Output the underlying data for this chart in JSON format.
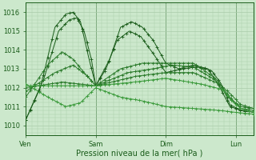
{
  "background_color": "#cce8cc",
  "grid_color": "#aaccaa",
  "line_colors": [
    "#1a5c1a",
    "#1a5c1a",
    "#2a7a2a",
    "#2a7a2a",
    "#2a7a2a",
    "#3a9a3a",
    "#3a9a3a"
  ],
  "marker": "+",
  "xlabel": "Pression niveau de la mer( hPa )",
  "xlabel_fontsize": 7,
  "tick_fontsize": 6,
  "ylim": [
    1009.5,
    1016.5
  ],
  "yticks": [
    1010,
    1011,
    1012,
    1013,
    1014,
    1015,
    1016
  ],
  "xtick_labels": [
    "Ven",
    "Sam",
    "Dim",
    "Lun"
  ],
  "xtick_positions": [
    0,
    96,
    192,
    288
  ],
  "total_points": 312
}
